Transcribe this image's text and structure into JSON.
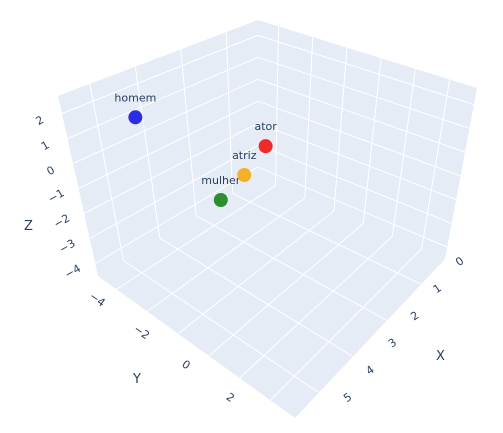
{
  "chart_data": {
    "type": "scatter3d",
    "xlabel": "X",
    "ylabel": "Y",
    "zlabel": "Z",
    "x_ticks": [
      "0",
      "1",
      "2",
      "3",
      "4",
      "5"
    ],
    "y_ticks": [
      "−4",
      "−2",
      "0",
      "2"
    ],
    "z_ticks": [
      "−4",
      "−3",
      "−2",
      "−1",
      "0",
      "1",
      "2"
    ],
    "xlim": [
      0,
      5
    ],
    "ylim": [
      -4,
      2
    ],
    "zlim": [
      -4,
      2
    ],
    "grid": true,
    "colors": {
      "scene_background": "#e5ecf6",
      "grid": "#ffffff",
      "text": "#2a3f5f"
    },
    "points": [
      {
        "label": "homem",
        "x": 0.5,
        "y": -3.3,
        "z": 1.9,
        "color": "#2c2ce6"
      },
      {
        "label": "mulher",
        "x": 2.0,
        "y": -2.2,
        "z": -1.0,
        "color": "#2d8f2d"
      },
      {
        "label": "atriz",
        "x": 2.2,
        "y": -1.6,
        "z": -0.3,
        "color": "#f4b128"
      },
      {
        "label": "ator",
        "x": 2.2,
        "y": -0.8,
        "z": 0.3,
        "color": "#f02a2a"
      }
    ]
  }
}
